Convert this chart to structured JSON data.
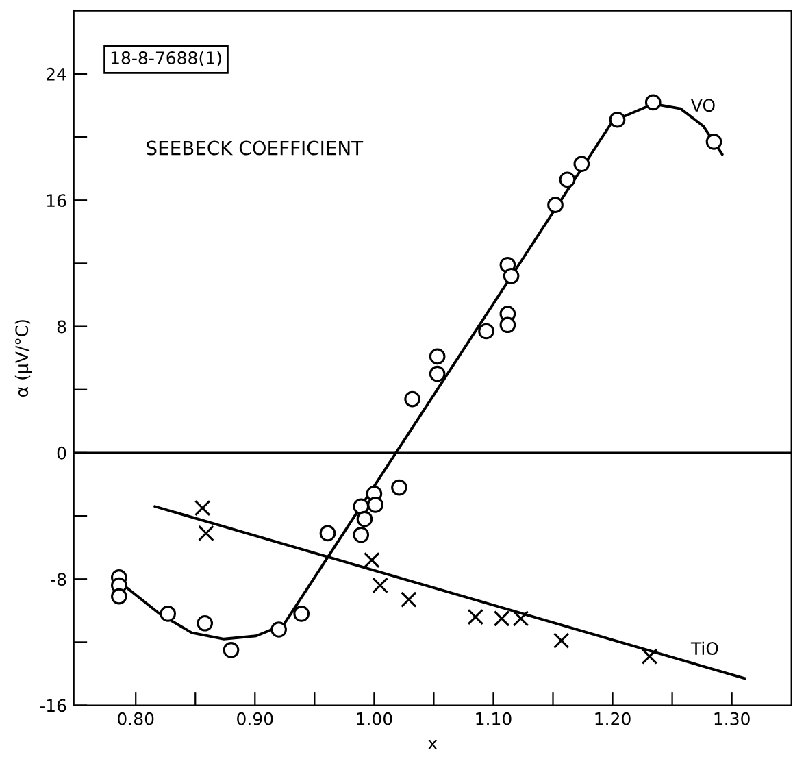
{
  "chart_data": {
    "type": "scatter",
    "xlabel": "x",
    "ylabel": "α (μV/°C)",
    "annotations": [
      "18-8-7688(1)",
      "SEEBECK COEFFICIENT"
    ],
    "series": [
      {
        "color": "#000000",
        "marker": "circle",
        "x": [
          0.786,
          0.786,
          0.786,
          0.827,
          0.858,
          0.88,
          0.92,
          0.939,
          0.961,
          0.989,
          0.992,
          0.989,
          1.0,
          1.001,
          1.021,
          1.032,
          1.053,
          1.053,
          1.094,
          1.112,
          1.112,
          1.112,
          1.115,
          1.152,
          1.162,
          1.174,
          1.204,
          1.234,
          1.285
        ],
        "values": [
          -7.9,
          -8.4,
          -9.1,
          -10.2,
          -10.8,
          -12.5,
          -11.2,
          -10.2,
          -5.1,
          -3.4,
          -4.2,
          -5.2,
          -2.6,
          -3.3,
          -2.2,
          3.4,
          6.1,
          5.0,
          7.7,
          8.8,
          8.1,
          11.9,
          11.2,
          15.7,
          17.3,
          18.3,
          21.1,
          22.2,
          19.7
        ]
      },
      {
        "type": "line",
        "name": "VO",
        "color": "#000000",
        "marker": "none",
        "line_style": "solid",
        "x": [
          0.79,
          0.82,
          0.847,
          0.874,
          0.901,
          0.924,
          1.2,
          1.234,
          1.257,
          1.276,
          1.292
        ],
        "values": [
          -8.4,
          -10.2,
          -11.4,
          -11.8,
          -11.6,
          -10.9,
          21.0,
          22.1,
          21.8,
          20.7,
          18.9
        ]
      },
      {
        "color": "#000000",
        "marker": "cross",
        "x": [
          0.856,
          0.859,
          0.998,
          1.005,
          1.029,
          1.085,
          1.107,
          1.123,
          1.157,
          1.231
        ],
        "values": [
          -3.5,
          -5.1,
          -6.8,
          -8.4,
          -9.3,
          -10.4,
          -10.5,
          -10.5,
          -11.9,
          -12.9
        ]
      },
      {
        "type": "line",
        "name": "TiO",
        "color": "#000000",
        "marker": "none",
        "line_style": "solid",
        "x": [
          0.816,
          1.311
        ],
        "values": [
          -3.4,
          -14.3
        ]
      }
    ],
    "ref_lines": [
      {
        "axis": "y",
        "value": 0,
        "color": "#000000",
        "line_style": "solid"
      }
    ],
    "xlim": [
      0.748,
      1.35
    ],
    "ylim": [
      -16,
      28
    ],
    "xticks": [
      {
        "value": 0.8,
        "label": "0.80"
      },
      {
        "value": 0.85,
        "label": null
      },
      {
        "value": 0.9,
        "label": "0.90"
      },
      {
        "value": 0.95,
        "label": null
      },
      {
        "value": 1.0,
        "label": "1.00"
      },
      {
        "value": 1.05,
        "label": null
      },
      {
        "value": 1.1,
        "label": "1.10"
      },
      {
        "value": 1.15,
        "label": null
      },
      {
        "value": 1.2,
        "label": "1.20"
      },
      {
        "value": 1.25,
        "label": null
      },
      {
        "value": 1.3,
        "label": "1.30"
      }
    ],
    "yticks": [
      -16,
      {
        "value": -12,
        "label": null
      },
      -8,
      {
        "value": -4,
        "label": null
      },
      0,
      {
        "value": 4,
        "label": null
      },
      8,
      {
        "value": 12,
        "label": null
      },
      16,
      {
        "value": 20,
        "label": null
      },
      24
    ],
    "grid": false
  }
}
